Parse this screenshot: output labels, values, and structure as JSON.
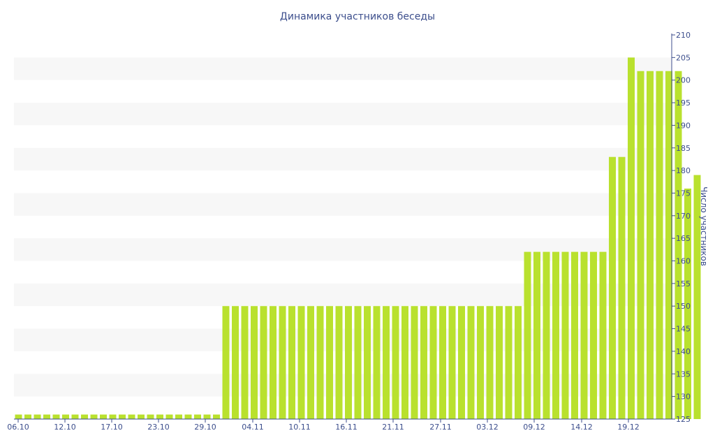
{
  "chart_data": {
    "type": "bar",
    "title": "Динамика участников беседы",
    "ylabel": "Число участников",
    "xlabel": "",
    "ylim": [
      125,
      210
    ],
    "y_ticks": [
      125,
      130,
      135,
      140,
      145,
      150,
      155,
      160,
      165,
      170,
      175,
      180,
      185,
      190,
      195,
      200,
      205,
      210
    ],
    "x_tick_labels": [
      "06.10",
      "12.10",
      "17.10",
      "23.10",
      "29.10",
      "04.11",
      "10.11",
      "16.11",
      "21.11",
      "27.11",
      "03.12",
      "09.12",
      "14.12",
      "19.12"
    ],
    "grid": "horizontal bands",
    "bar_color": "#b9e12e",
    "band_color": "#f7f7f7",
    "values": [
      126,
      126,
      126,
      126,
      126,
      126,
      126,
      126,
      126,
      126,
      126,
      126,
      126,
      126,
      126,
      126,
      126,
      126,
      126,
      126,
      126,
      126,
      150,
      150,
      150,
      150,
      150,
      150,
      150,
      150,
      150,
      150,
      150,
      150,
      150,
      150,
      150,
      150,
      150,
      150,
      150,
      150,
      150,
      150,
      150,
      150,
      150,
      150,
      150,
      150,
      150,
      150,
      150,
      150,
      162,
      162,
      162,
      162,
      162,
      162,
      162,
      162,
      162,
      183,
      183,
      205,
      202,
      202,
      202,
      202,
      202,
      176,
      179
    ]
  }
}
